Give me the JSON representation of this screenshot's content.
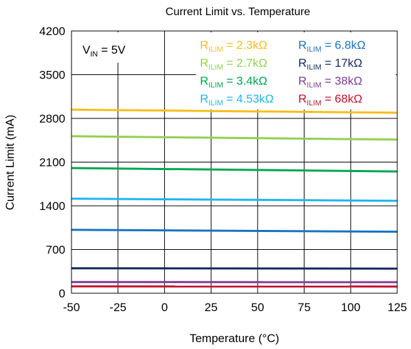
{
  "chart_data": {
    "type": "line",
    "title": "Current Limit vs. Temperature",
    "xlabel": "Temperature (°C)",
    "ylabel": "Current Limit (mA)",
    "xlim": [
      -50,
      125
    ],
    "ylim": [
      0,
      4200
    ],
    "xticks": [
      -50,
      -25,
      0,
      25,
      50,
      75,
      100,
      125
    ],
    "yticks": [
      0,
      700,
      1400,
      2100,
      2800,
      3500,
      4200
    ],
    "grid": true,
    "annotation": {
      "main": "V",
      "sub": "IN",
      "rest": " = 5V"
    },
    "legend_position": "top-right",
    "x": [
      -50,
      125
    ],
    "series": [
      {
        "label_main": "R",
        "label_sub": "ILIM",
        "label_rest": " = 2.3kΩ",
        "color": "#f7be1a",
        "values": [
          2940,
          2890
        ]
      },
      {
        "label_main": "R",
        "label_sub": "ILIM",
        "label_rest": " = 2.7kΩ",
        "color": "#92d050",
        "values": [
          2515,
          2460
        ]
      },
      {
        "label_main": "R",
        "label_sub": "ILIM",
        "label_rest": " = 3.4kΩ",
        "color": "#00a651",
        "values": [
          2005,
          1950
        ]
      },
      {
        "label_main": "R",
        "label_sub": "ILIM",
        "label_rest": " = 4.53kΩ",
        "color": "#1fb5ee",
        "values": [
          1515,
          1480
        ]
      },
      {
        "label_main": "R",
        "label_sub": "ILIM",
        "label_rest": " = 6.8kΩ",
        "color": "#1673c2",
        "values": [
          1015,
          985
        ]
      },
      {
        "label_main": "R",
        "label_sub": "ILIM",
        "label_rest": " = 17kΩ",
        "color": "#13295c",
        "values": [
          400,
          395
        ]
      },
      {
        "label_main": "R",
        "label_sub": "ILIM",
        "label_rest": " = 38kΩ",
        "color": "#7d3c98",
        "values": [
          180,
          178
        ]
      },
      {
        "label_main": "R",
        "label_sub": "ILIM",
        "label_rest": " = 68kΩ",
        "color": "#c0142b",
        "values": [
          110,
          108
        ]
      }
    ]
  }
}
